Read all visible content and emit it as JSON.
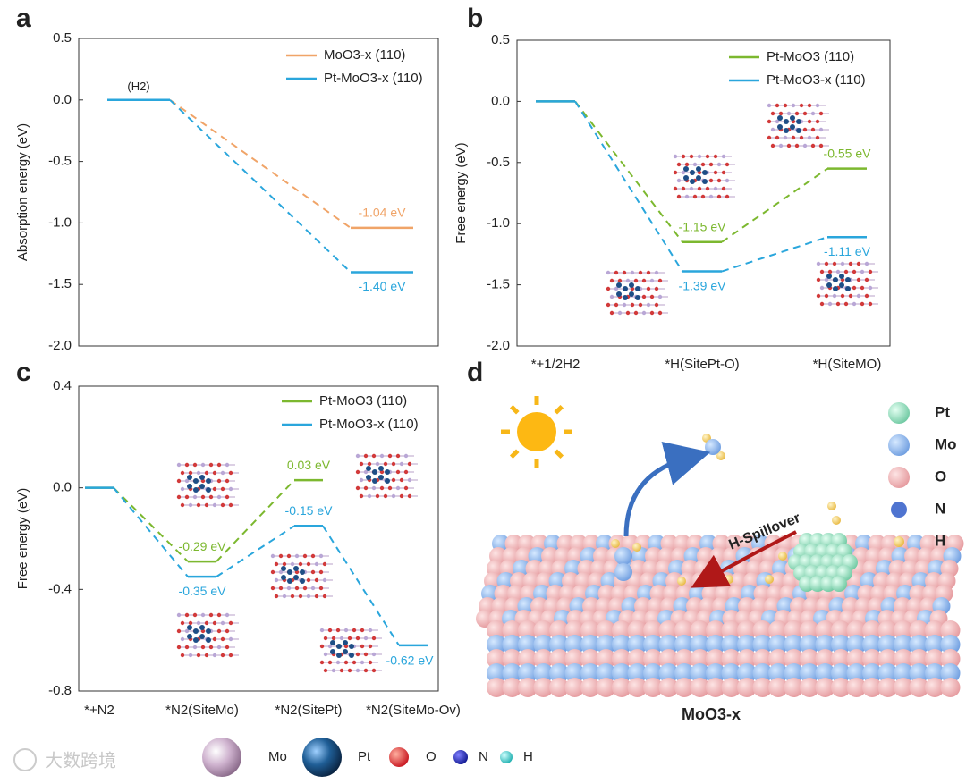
{
  "chart_data": [
    {
      "type": "energy_profile",
      "panel": "a",
      "ylabel": "Absorption energy (eV)",
      "categories": [
        null,
        null
      ],
      "annotation": "(H2)",
      "series": [
        {
          "name": "MoO3-x (110)",
          "color": "#f0a468",
          "values": [
            0.0,
            -1.04
          ],
          "value_labels": [
            null,
            "-1.04 eV"
          ]
        },
        {
          "name": "Pt-MoO3-x (110)",
          "color": "#2aa6dc",
          "values": [
            0.0,
            -1.4
          ],
          "value_labels": [
            null,
            "-1.40 eV"
          ]
        }
      ],
      "ylim": [
        -2.0,
        0.5
      ],
      "yticks": [
        {
          "value": 0.5,
          "label": "0.5"
        },
        {
          "value": 0.0,
          "label": "0.0"
        },
        {
          "value": -0.5,
          "label": "-0.5"
        },
        {
          "value": -1.0,
          "label": "-1.0"
        },
        {
          "value": -1.5,
          "label": "-1.5"
        },
        {
          "value": -2.0,
          "label": "-2.0"
        }
      ],
      "legend": "upper right"
    },
    {
      "type": "energy_profile",
      "panel": "b",
      "ylabel": "Free energy (eV)",
      "categories": [
        "*+1/2H2",
        "*H(SitePt-O)",
        "*H(SiteMO)"
      ],
      "series": [
        {
          "name": "Pt-MoO3 (110)",
          "color": "#7cb82f",
          "values": [
            0.0,
            -1.15,
            -0.55
          ],
          "value_labels": [
            null,
            "-1.15 eV",
            "-0.55 eV"
          ]
        },
        {
          "name": "Pt-MoO3-x (110)",
          "color": "#2aa6dc",
          "values": [
            0.0,
            -1.39,
            -1.11
          ],
          "value_labels": [
            null,
            "-1.39 eV",
            "-1.11 eV"
          ]
        }
      ],
      "ylim": [
        -2.0,
        0.5
      ],
      "yticks": [
        {
          "value": 0.5,
          "label": "0.5"
        },
        {
          "value": 0.0,
          "label": "0.0"
        },
        {
          "value": -0.5,
          "label": "-0.5"
        },
        {
          "value": -1.0,
          "label": "-1.0"
        },
        {
          "value": -1.5,
          "label": "-1.5"
        },
        {
          "value": -2.0,
          "label": "-2.0"
        }
      ],
      "legend": "upper right"
    },
    {
      "type": "energy_profile",
      "panel": "c",
      "ylabel": "Free energy (eV)",
      "categories": [
        "*+N2",
        "*N2(SiteMo)",
        "*N2(SitePt)",
        "*N2(SiteMo-Ov)"
      ],
      "series": [
        {
          "name": "Pt-MoO3 (110)",
          "color": "#7cb82f",
          "values": [
            0.0,
            -0.29,
            0.03,
            null
          ],
          "value_labels": [
            null,
            "-0.29 eV",
            "0.03 eV",
            null
          ]
        },
        {
          "name": "Pt-MoO3-x (110)",
          "color": "#2aa6dc",
          "values": [
            0.0,
            -0.35,
            -0.15,
            -0.62
          ],
          "value_labels": [
            null,
            "-0.35 eV",
            "-0.15 eV",
            "-0.62 eV"
          ]
        }
      ],
      "ylim": [
        -0.8,
        0.4
      ],
      "yticks": [
        {
          "value": 0.4,
          "label": "0.4"
        },
        {
          "value": 0.0,
          "label": "0.0"
        },
        {
          "value": -0.4,
          "label": "-0.4"
        },
        {
          "value": -0.8,
          "label": "-0.8"
        }
      ],
      "legend": "upper right"
    }
  ],
  "illustration": {
    "panel": "d",
    "legend": [
      "Pt",
      "Mo",
      "O",
      "N",
      "H"
    ],
    "arrow_label": "H-Spillover",
    "caption": "MoO3-x"
  },
  "atom_legend": [
    "Mo",
    "Pt",
    "O",
    "N",
    "H"
  ],
  "watermark": "大数跨境"
}
